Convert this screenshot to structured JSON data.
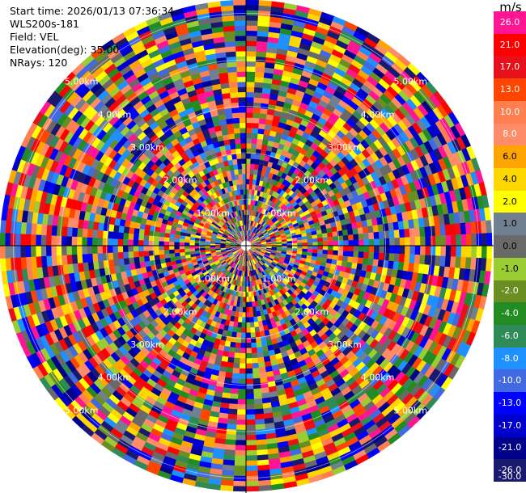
{
  "info": {
    "start_time": "Start time: 2026/01/13 07:36:34",
    "instrument": "WLS200s-181",
    "field": "Field: VEL",
    "elevation": "Elevation(deg): 35.00",
    "nrays": "NRays: 120"
  },
  "plot": {
    "range_labels": [
      "1.00km",
      "2.00km",
      "3.00km",
      "4.00km",
      "5.00km"
    ],
    "label_color": "#ffffff"
  },
  "colorbar": {
    "unit": "m/s",
    "ticks": [
      "26.0",
      "21.0",
      "17.0",
      "13.0",
      "10.0",
      "8.0",
      "6.0",
      "4.0",
      "2.0",
      "1.0",
      "0.0",
      "-1.0",
      "-2.0",
      "-4.0",
      "-6.0",
      "-8.0",
      "-10.0",
      "-13.0",
      "-17.0",
      "-21.0",
      "-26.0",
      "-30.0"
    ],
    "colors": [
      "#ff1493",
      "#ff0000",
      "#e8101a",
      "#ff4500",
      "#ff7f50",
      "#ff8c69",
      "#ffa500",
      "#ffd700",
      "#ffff00",
      "#708090",
      "#696969",
      "#9acd32",
      "#6b8e23",
      "#228b22",
      "#2e8b57",
      "#1e90ff",
      "#4169e1",
      "#0000ff",
      "#0000cd",
      "#00008b",
      "#191970"
    ]
  }
}
